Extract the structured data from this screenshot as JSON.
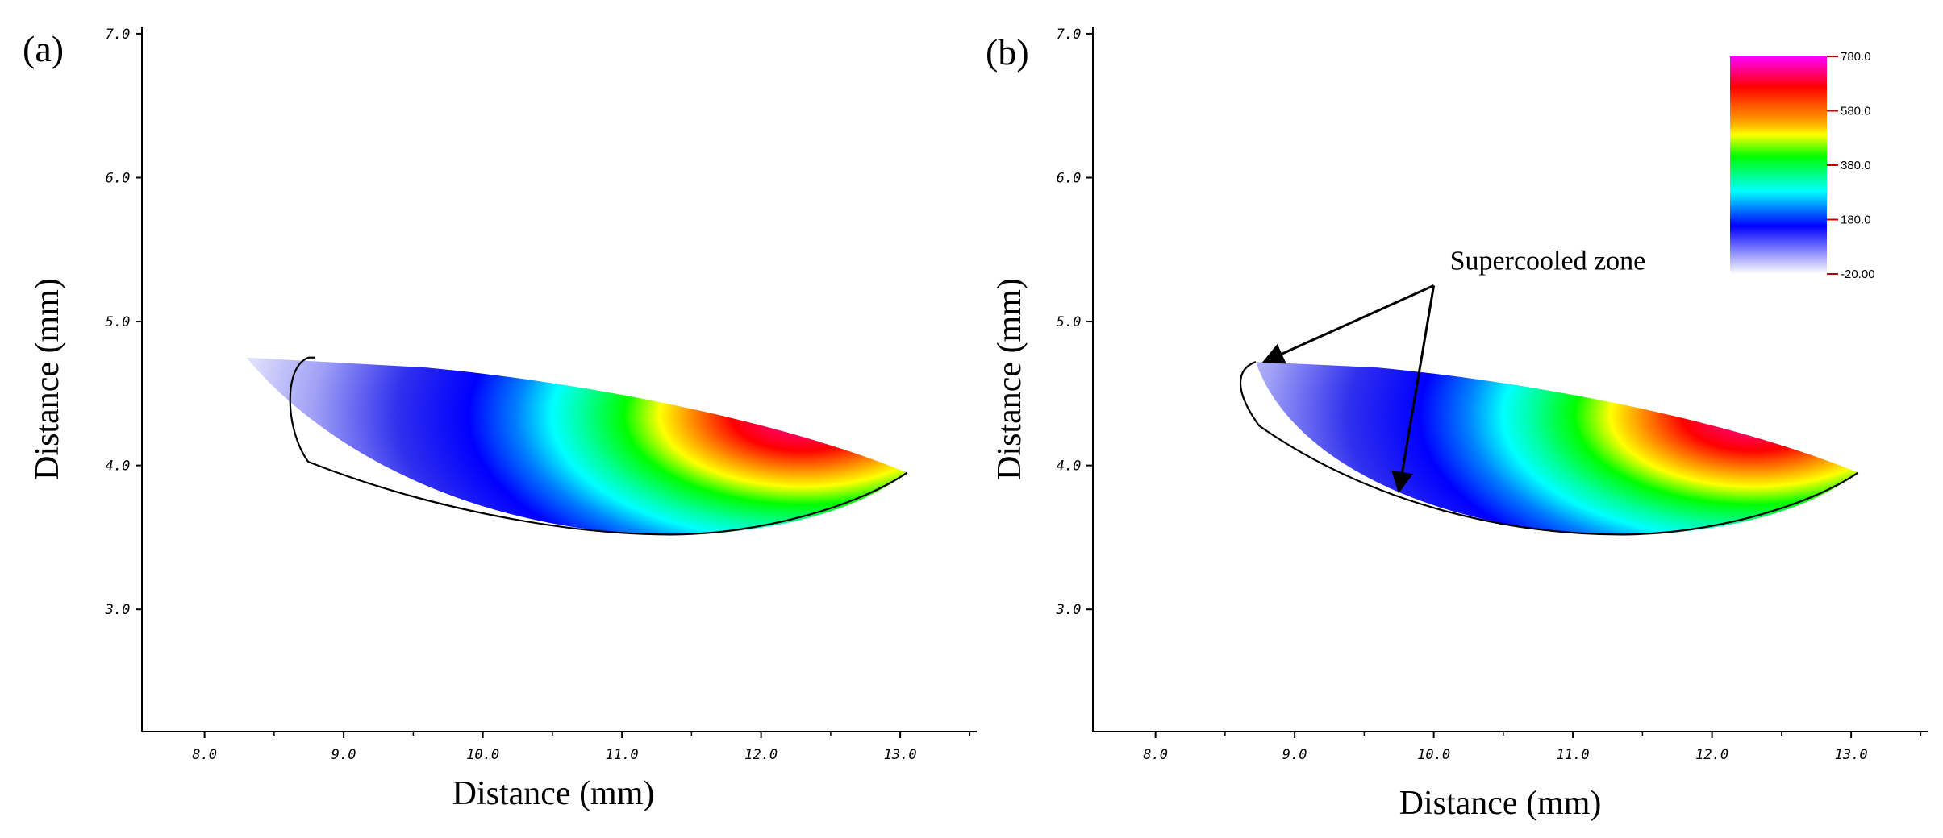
{
  "chart_data": [
    {
      "type": "heatmap",
      "panel_label": "(a)",
      "title": "",
      "xlabel": "Distance (mm)",
      "ylabel": "Distance (mm)",
      "xlim": [
        7.55,
        13.55
      ],
      "ylim": [
        2.15,
        7.05
      ],
      "xticks": [
        "8.0",
        "9.0",
        "10.0",
        "11.0",
        "12.0",
        "13.0"
      ],
      "yticks": [
        "3.0",
        "4.0",
        "5.0",
        "6.0",
        "7.0"
      ],
      "grid": false,
      "melt_pool": {
        "top_y": 4.75,
        "top_left_x": 8.3,
        "hot_spot": [
          12.3,
          4.35
        ],
        "tail": [
          13.05,
          3.95
        ],
        "bottom": [
          11.35,
          3.52
        ],
        "liquidus_start": [
          8.75,
          4.75
        ],
        "liquidus_left": [
          8.6,
          4.25
        ]
      },
      "value_range": [
        -20.0,
        780.0
      ],
      "annotations": []
    },
    {
      "type": "heatmap",
      "panel_label": "(b)",
      "title": "",
      "xlabel": "Distance (mm)",
      "ylabel": "Distance (mm)",
      "xlim": [
        7.55,
        13.55
      ],
      "ylim": [
        2.15,
        7.05
      ],
      "xticks": [
        "8.0",
        "9.0",
        "10.0",
        "11.0",
        "12.0",
        "13.0"
      ],
      "yticks": [
        "3.0",
        "4.0",
        "5.0",
        "6.0",
        "7.0"
      ],
      "grid": false,
      "melt_pool": {
        "top_y": 4.72,
        "top_left_x": 8.72,
        "hot_spot": [
          12.3,
          4.35
        ],
        "tail": [
          13.05,
          3.95
        ],
        "bottom": [
          11.35,
          3.52
        ],
        "liquidus_start": [
          8.72,
          4.72
        ],
        "liquidus_left": [
          8.6,
          4.5
        ]
      },
      "value_range": [
        -20.0,
        780.0
      ],
      "colorbar": {
        "ticks": [
          "780.0",
          "580.0",
          "380.0",
          "180.0",
          "-20.00"
        ],
        "colors": [
          "#ff00ff",
          "#ff0000",
          "#ffa000",
          "#ffff00",
          "#00ff00",
          "#00ffff",
          "#0000ff",
          "#ffffff"
        ]
      },
      "annotations": [
        {
          "text": "Supercooled zone",
          "anchor": [
            10.0,
            5.25
          ],
          "arrows_to": [
            [
              8.78,
              4.72
            ],
            [
              9.75,
              3.82
            ]
          ]
        }
      ]
    }
  ]
}
